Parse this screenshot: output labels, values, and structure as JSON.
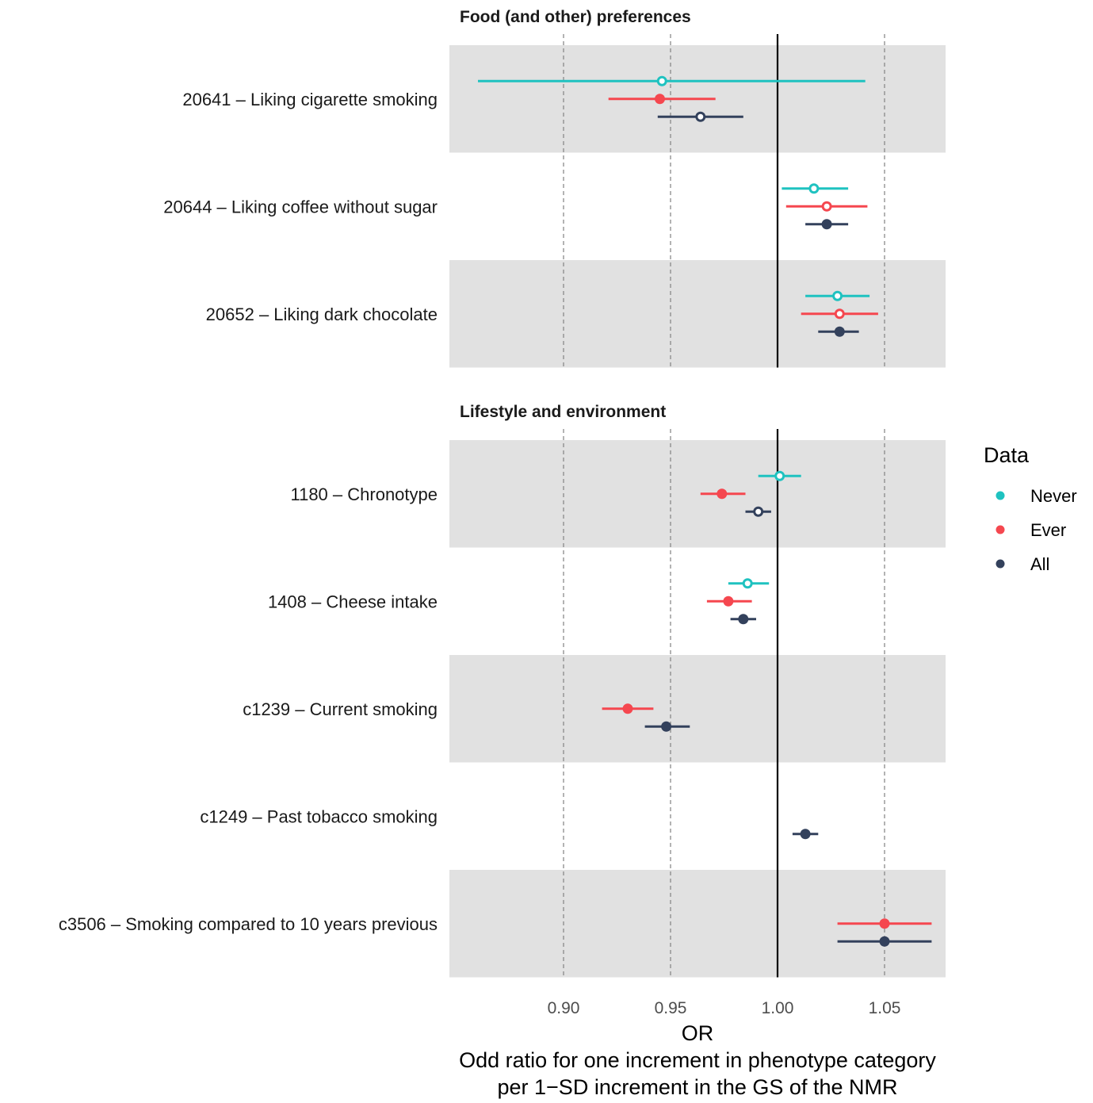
{
  "chart_data": {
    "type": "forest",
    "xlabel": "OR",
    "x_subtitle_lines": [
      "Odd ratio for one increment in phenotype category",
      "per 1−SD increment in the GS of the NMR"
    ],
    "xlim": [
      0.848,
      1.084
    ],
    "x_ticks": [
      0.9,
      0.95,
      1.0,
      1.05
    ],
    "x_tick_labels": [
      "0.90",
      "0.95",
      "1.00",
      "1.05"
    ],
    "reference_line": 1.0,
    "grid": "vertical dashed at ticks",
    "legend": {
      "title": "Data",
      "placement": "right",
      "entries": [
        {
          "name": "Never",
          "color": "#1fc2c0"
        },
        {
          "name": "Ever",
          "color": "#f5474f"
        },
        {
          "name": "All",
          "color": "#33415c"
        }
      ]
    },
    "marker_note": "filled = significant, open = not significant",
    "panels": [
      {
        "title": "Food (and other) preferences",
        "rows": [
          {
            "label": "20641 – Liking cigarette smoking",
            "shaded": true,
            "estimates": [
              {
                "series": "Never",
                "or": 0.946,
                "lo": 0.86,
                "hi": 1.041,
                "filled": false
              },
              {
                "series": "Ever",
                "or": 0.945,
                "lo": 0.921,
                "hi": 0.971,
                "filled": true
              },
              {
                "series": "All",
                "or": 0.964,
                "lo": 0.944,
                "hi": 0.984,
                "filled": false
              }
            ]
          },
          {
            "label": "20644 – Liking coffee without sugar",
            "shaded": false,
            "estimates": [
              {
                "series": "Never",
                "or": 1.017,
                "lo": 1.002,
                "hi": 1.033,
                "filled": false
              },
              {
                "series": "Ever",
                "or": 1.023,
                "lo": 1.004,
                "hi": 1.042,
                "filled": false
              },
              {
                "series": "All",
                "or": 1.023,
                "lo": 1.013,
                "hi": 1.033,
                "filled": true
              }
            ]
          },
          {
            "label": "20652 – Liking dark chocolate",
            "shaded": true,
            "estimates": [
              {
                "series": "Never",
                "or": 1.028,
                "lo": 1.013,
                "hi": 1.043,
                "filled": false
              },
              {
                "series": "Ever",
                "or": 1.029,
                "lo": 1.011,
                "hi": 1.047,
                "filled": false
              },
              {
                "series": "All",
                "or": 1.029,
                "lo": 1.019,
                "hi": 1.038,
                "filled": true
              }
            ]
          }
        ]
      },
      {
        "title": "Lifestyle and environment",
        "rows": [
          {
            "label": "1180 – Chronotype",
            "shaded": true,
            "estimates": [
              {
                "series": "Never",
                "or": 1.001,
                "lo": 0.991,
                "hi": 1.011,
                "filled": false
              },
              {
                "series": "Ever",
                "or": 0.974,
                "lo": 0.964,
                "hi": 0.985,
                "filled": true
              },
              {
                "series": "All",
                "or": 0.991,
                "lo": 0.985,
                "hi": 0.997,
                "filled": false
              }
            ]
          },
          {
            "label": "1408 – Cheese intake",
            "shaded": false,
            "estimates": [
              {
                "series": "Never",
                "or": 0.986,
                "lo": 0.977,
                "hi": 0.996,
                "filled": false
              },
              {
                "series": "Ever",
                "or": 0.977,
                "lo": 0.967,
                "hi": 0.988,
                "filled": true
              },
              {
                "series": "All",
                "or": 0.984,
                "lo": 0.978,
                "hi": 0.99,
                "filled": true
              }
            ]
          },
          {
            "label": "c1239 – Current smoking",
            "shaded": true,
            "estimates": [
              {
                "series": "Ever",
                "or": 0.93,
                "lo": 0.918,
                "hi": 0.942,
                "filled": true
              },
              {
                "series": "All",
                "or": 0.948,
                "lo": 0.938,
                "hi": 0.959,
                "filled": true
              }
            ]
          },
          {
            "label": "c1249 – Past tobacco smoking",
            "shaded": false,
            "estimates": [
              {
                "series": "All",
                "or": 1.013,
                "lo": 1.007,
                "hi": 1.019,
                "filled": true
              }
            ]
          },
          {
            "label": "c3506 – Smoking compared to 10 years previous",
            "shaded": true,
            "estimates": [
              {
                "series": "Ever",
                "or": 1.05,
                "lo": 1.028,
                "hi": 1.072,
                "filled": true
              },
              {
                "series": "All",
                "or": 1.05,
                "lo": 1.028,
                "hi": 1.072,
                "filled": true
              }
            ]
          }
        ]
      }
    ]
  }
}
